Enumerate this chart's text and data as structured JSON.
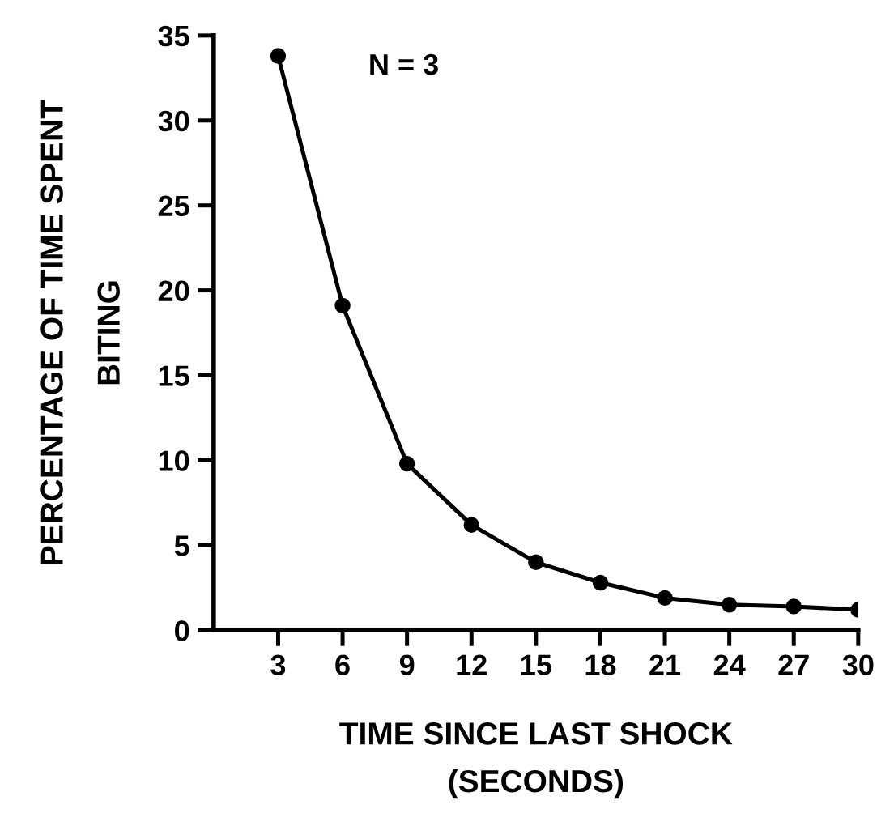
{
  "chart_data": {
    "type": "line",
    "xlabel": "TIME SINCE LAST SHOCK\n(SECONDS)",
    "ylabel": "PERCENTAGE OF TIME SPENT\nBITING",
    "annotations": [
      "N = 3"
    ],
    "x": [
      3,
      6,
      9,
      12,
      15,
      18,
      21,
      24,
      27,
      30
    ],
    "series": [
      {
        "color": "#000000",
        "values": [
          33.8,
          19.1,
          9.8,
          6.2,
          4.0,
          2.8,
          1.9,
          1.5,
          1.4,
          1.2
        ]
      }
    ],
    "xlim": [
      0,
      30
    ],
    "xticks": [
      3,
      6,
      9,
      12,
      15,
      18,
      21,
      24,
      27,
      30
    ],
    "ylim": [
      0,
      35
    ],
    "yticks": [
      0,
      5,
      10,
      15,
      20,
      25,
      30,
      35
    ],
    "marker": "circle",
    "line_style": "solid",
    "grid": false,
    "legend": false
  }
}
